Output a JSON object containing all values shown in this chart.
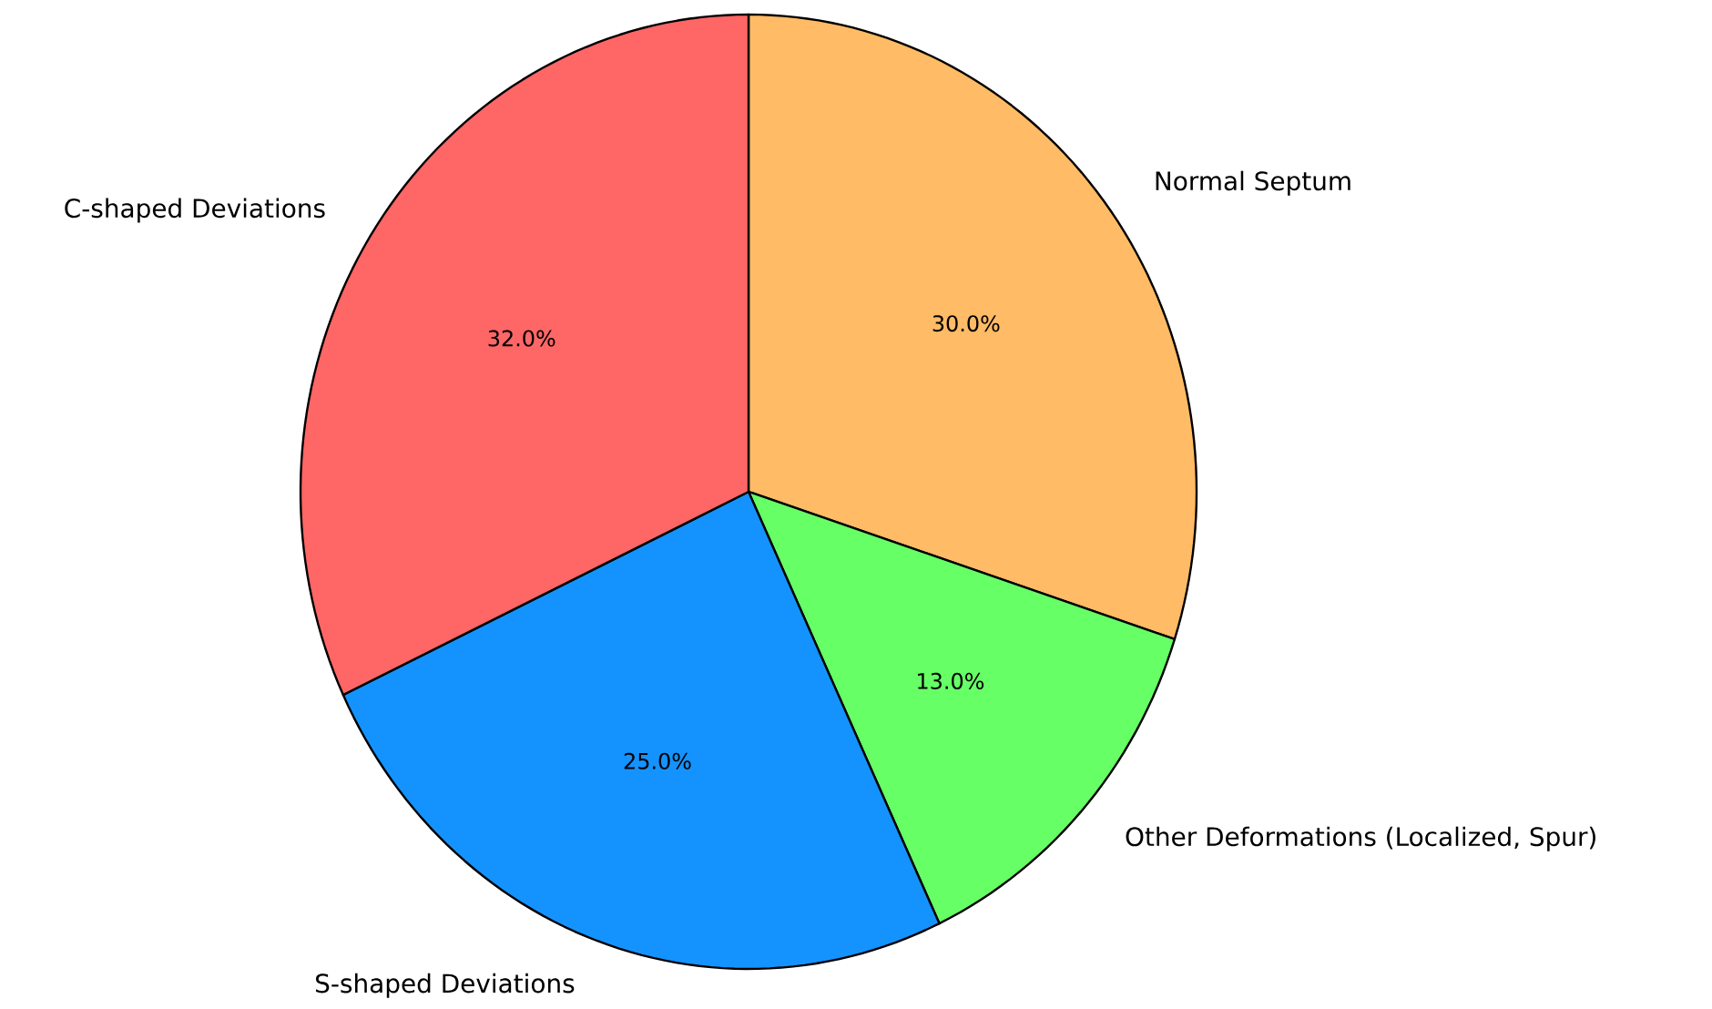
{
  "chart_data": {
    "type": "pie",
    "categories": [
      "Normal Septum",
      "Other Deformations (Localized, Spur)",
      "S-shaped Deviations",
      "C-shaped Deviations"
    ],
    "values": [
      30,
      13,
      25,
      32
    ],
    "colors": [
      "#ffbb66",
      "#66ff66",
      "#1493ff",
      "#ff6666"
    ],
    "value_labels": [
      "30.0%",
      "13.0%",
      "25.0%",
      "32.0%"
    ]
  }
}
